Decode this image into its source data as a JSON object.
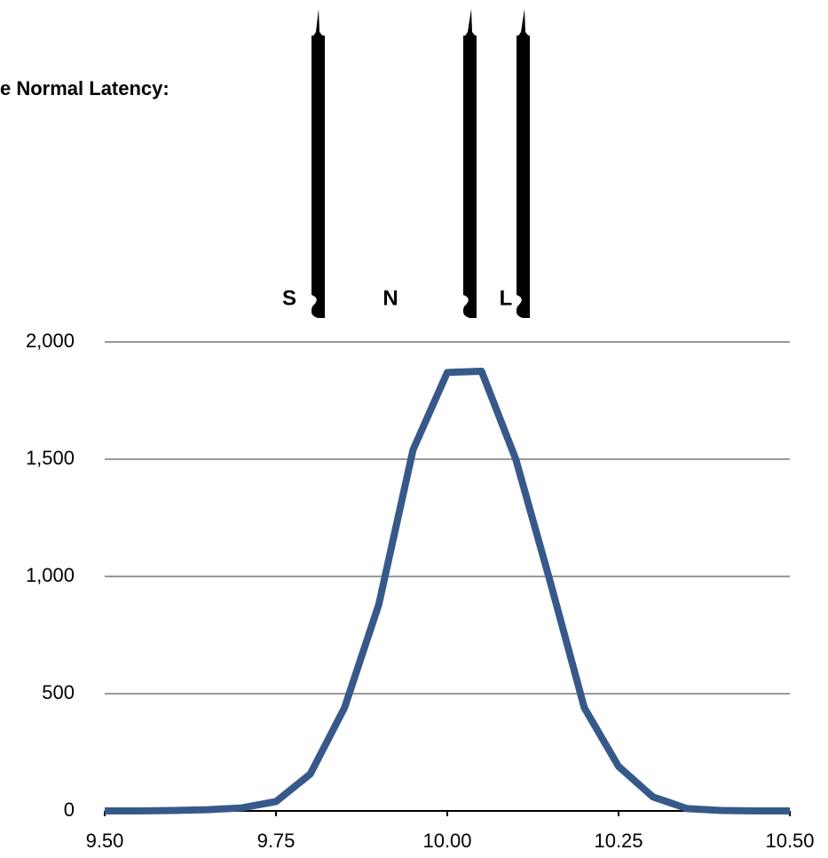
{
  "chart_data": {
    "type": "line",
    "title": "e Normal Latency:",
    "annotations": [
      "S",
      "N",
      "L"
    ],
    "x": [
      9.5,
      9.55,
      9.6,
      9.65,
      9.7,
      9.75,
      9.8,
      9.85,
      9.9,
      9.95,
      10.0,
      10.05,
      10.1,
      10.15,
      10.2,
      10.25,
      10.3,
      10.35,
      10.4,
      10.45,
      10.5
    ],
    "values": [
      0,
      0,
      2,
      5,
      13,
      40,
      157,
      440,
      880,
      1540,
      1870,
      1875,
      1500,
      980,
      440,
      190,
      60,
      10,
      2,
      0,
      0
    ],
    "color": "#36598a",
    "xlim": [
      9.5,
      10.5
    ],
    "xticks": [
      {
        "value": 9.5,
        "label": "9.50"
      },
      {
        "value": 9.75,
        "label": "9.75"
      },
      {
        "value": 10.0,
        "label": "10.00"
      },
      {
        "value": 10.25,
        "label": "10.25"
      },
      {
        "value": 10.5,
        "label": "10.50"
      }
    ],
    "ylim": [
      0,
      2000
    ],
    "yticks": [
      0,
      500,
      {
        "value": 1000,
        "label": "1,000"
      },
      {
        "value": 1500,
        "label": "1,500"
      },
      {
        "value": 2000,
        "label": "2,000"
      }
    ],
    "grid": true
  }
}
